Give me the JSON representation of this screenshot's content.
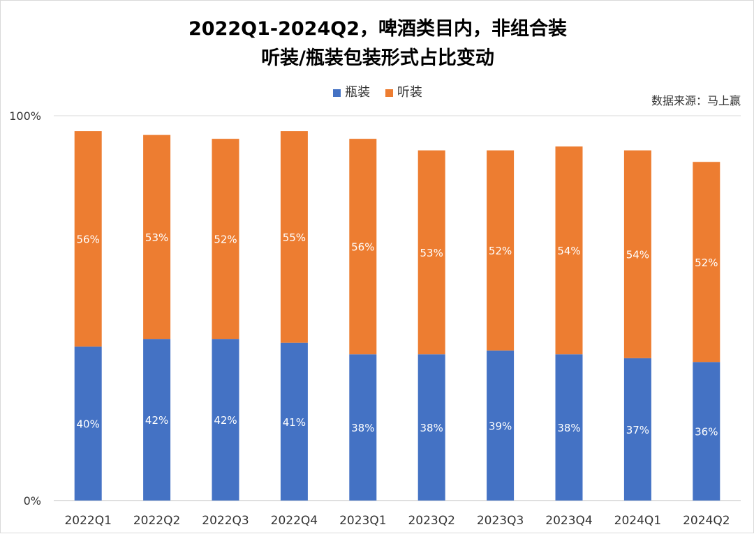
{
  "chart_data": {
    "type": "bar",
    "stacked": true,
    "title_line1": "2022Q1-2024Q2，啤酒类目内，非组合装",
    "title_line2": "听装/瓶装包装形式占比变动",
    "source": "数据来源：马上赢",
    "categories": [
      "2022Q1",
      "2022Q2",
      "2022Q3",
      "2022Q4",
      "2023Q1",
      "2023Q2",
      "2023Q3",
      "2023Q4",
      "2024Q1",
      "2024Q2"
    ],
    "series": [
      {
        "name": "瓶装",
        "color": "#4472C4",
        "values": [
          40,
          42,
          42,
          41,
          38,
          38,
          39,
          38,
          37,
          36
        ]
      },
      {
        "name": "听装",
        "color": "#ED7D31",
        "values": [
          56,
          53,
          52,
          55,
          56,
          53,
          52,
          54,
          54,
          52
        ]
      }
    ],
    "yticks": [
      "0%",
      "100%"
    ],
    "ylim": [
      0,
      100
    ],
    "legend_position": "top"
  }
}
